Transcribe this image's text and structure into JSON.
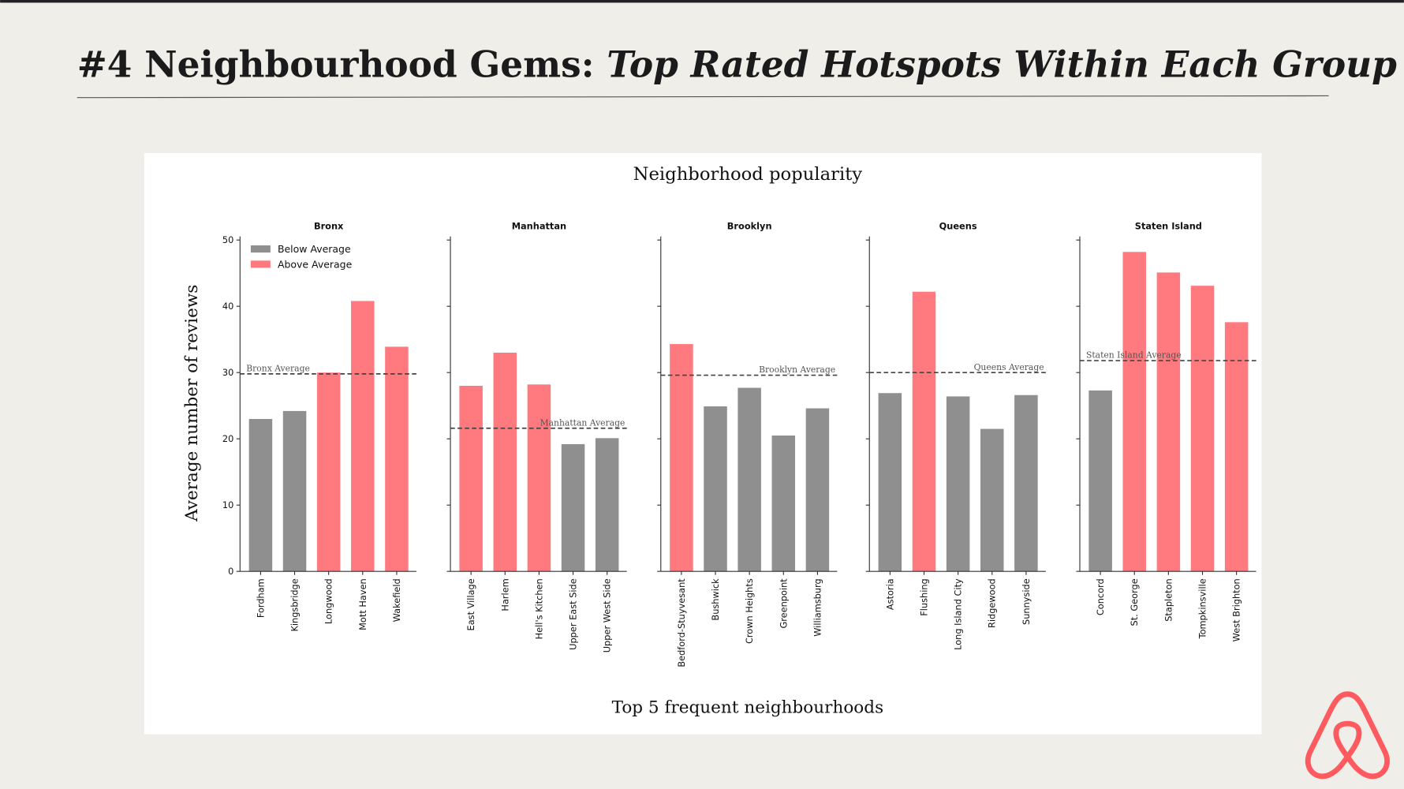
{
  "header": {
    "title_prefix": "#4 Neighbourhood Gems: ",
    "title_emphasis": "Top Rated Hotspots Within Each Group"
  },
  "figure": {
    "title": "Neighborhood popularity",
    "y_label": "Average number of reviews",
    "x_label": "Top 5 frequent neighbourhoods",
    "ylim": [
      0,
      50
    ],
    "yticks": [
      0,
      10,
      20,
      30,
      40,
      50
    ]
  },
  "chart_data": [
    {
      "type": "bar",
      "title": "Bronx",
      "categories": [
        "Fordham",
        "Kingsbridge",
        "Longwood",
        "Mott Haven",
        "Wakefield"
      ],
      "values": [
        23.0,
        24.2,
        30.0,
        40.8,
        33.9
      ],
      "colors": [
        "#8f8f8f",
        "#8f8f8f",
        "#ff7a7f",
        "#ff7a7f",
        "#ff7a7f"
      ],
      "average": 29.8,
      "average_label": "Bronx Average",
      "legend": [
        {
          "name": "Below Average",
          "color": "#8f8f8f"
        },
        {
          "name": "Above Average",
          "color": "#ff7a7f"
        }
      ]
    },
    {
      "type": "bar",
      "title": "Manhattan",
      "categories": [
        "East Village",
        "Harlem",
        "Hell's Kitchen",
        "Upper East Side",
        "Upper West Side"
      ],
      "values": [
        28.0,
        33.0,
        28.2,
        19.2,
        20.1
      ],
      "colors": [
        "#ff7a7f",
        "#ff7a7f",
        "#ff7a7f",
        "#8f8f8f",
        "#8f8f8f"
      ],
      "average": 21.6,
      "average_label": "Manhattan Average"
    },
    {
      "type": "bar",
      "title": "Brooklyn",
      "categories": [
        "Bedford-Stuyvesant",
        "Bushwick",
        "Crown Heights",
        "Greenpoint",
        "Williamsburg"
      ],
      "values": [
        34.3,
        24.9,
        27.7,
        20.5,
        24.6
      ],
      "colors": [
        "#ff7a7f",
        "#8f8f8f",
        "#8f8f8f",
        "#8f8f8f",
        "#8f8f8f"
      ],
      "average": 29.6,
      "average_label": "Brooklyn Average"
    },
    {
      "type": "bar",
      "title": "Queens",
      "categories": [
        "Astoria",
        "Flushing",
        "Long Island City",
        "Ridgewood",
        "Sunnyside"
      ],
      "values": [
        26.9,
        42.2,
        26.4,
        21.5,
        26.6
      ],
      "colors": [
        "#8f8f8f",
        "#ff7a7f",
        "#8f8f8f",
        "#8f8f8f",
        "#8f8f8f"
      ],
      "average": 30.0,
      "average_label": "Queens Average"
    },
    {
      "type": "bar",
      "title": "Staten Island",
      "categories": [
        "Concord",
        "St. George",
        "Stapleton",
        "Tompkinsville",
        "West Brighton"
      ],
      "values": [
        27.3,
        48.2,
        45.1,
        43.1,
        37.6
      ],
      "colors": [
        "#8f8f8f",
        "#ff7a7f",
        "#ff7a7f",
        "#ff7a7f",
        "#ff7a7f"
      ],
      "average": 31.8,
      "average_label": "Staten Island Average"
    }
  ]
}
